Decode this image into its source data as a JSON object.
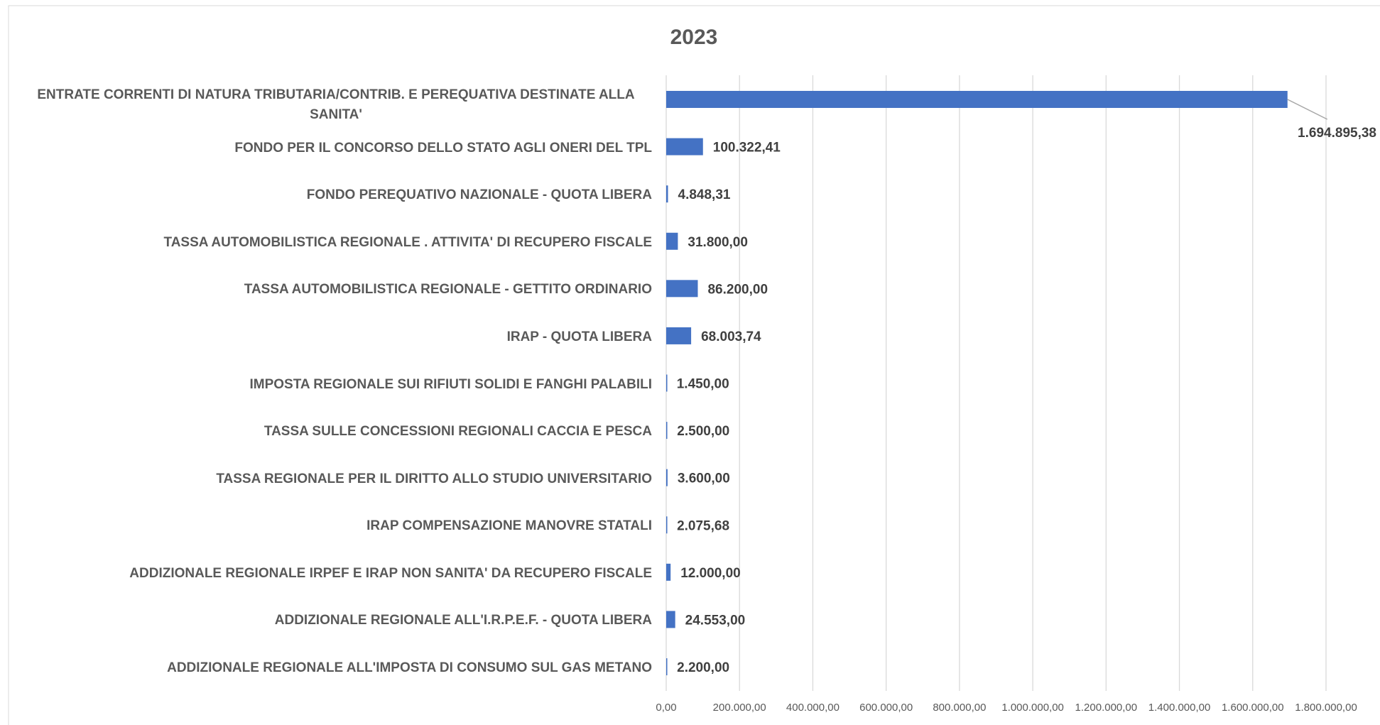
{
  "chart_data": {
    "type": "barh",
    "title": "2023",
    "categories": [
      "ENTRATE CORRENTI DI NATURA TRIBUTARIA/CONTRIB. E PEREQUATIVA DESTINATE ALLA SANITA'",
      "FONDO PER IL CONCORSO DELLO STATO AGLI ONERI DEL TPL",
      "FONDO PEREQUATIVO NAZIONALE - QUOTA LIBERA",
      "TASSA AUTOMOBILISTICA REGIONALE . ATTIVITA' DI RECUPERO FISCALE",
      "TASSA AUTOMOBILISTICA REGIONALE - GETTITO ORDINARIO",
      "IRAP - QUOTA LIBERA",
      "IMPOSTA REGIONALE SUI RIFIUTI SOLIDI E FANGHI PALABILI",
      "TASSA SULLE CONCESSIONI REGIONALI CACCIA E PESCA",
      "TASSA REGIONALE PER IL DIRITTO ALLO STUDIO UNIVERSITARIO",
      "IRAP COMPENSAZIONE MANOVRE STATALI",
      "ADDIZIONALE REGIONALE IRPEF E IRAP  NON SANITA' DA RECUPERO FISCALE",
      "ADDIZIONALE REGIONALE ALL'I.R.P.E.F. - QUOTA LIBERA",
      "ADDIZIONALE REGIONALE ALL'IMPOSTA DI CONSUMO SUL GAS METANO"
    ],
    "values": [
      1694895.38,
      100322.41,
      4848.31,
      31800,
      86200,
      68003.74,
      1450,
      2500,
      3600,
      2075.68,
      12000,
      24553,
      2200
    ],
    "value_labels": [
      "1.694.895,38",
      "100.322,41",
      "4.848,31",
      "31.800,00",
      "86.200,00",
      "68.003,74",
      "1.450,00",
      "2.500,00",
      "3.600,00",
      "2.075,68",
      "12.000,00",
      "24.553,00",
      "2.200,00"
    ],
    "color": "#4472c4",
    "xlim": [
      0,
      1800000
    ],
    "xticks": [
      {
        "value": 0,
        "label": "0,00"
      },
      {
        "value": 200000,
        "label": "200.000,00"
      },
      {
        "value": 400000,
        "label": "400.000,00"
      },
      {
        "value": 600000,
        "label": "600.000,00"
      },
      {
        "value": 800000,
        "label": "800.000,00"
      },
      {
        "value": 1000000,
        "label": "1.000.000,00"
      },
      {
        "value": 1200000,
        "label": "1.200.000,00"
      },
      {
        "value": 1400000,
        "label": "1.400.000,00"
      },
      {
        "value": 1600000,
        "label": "1.600.000,00"
      },
      {
        "value": 1800000,
        "label": "1.800.000,00"
      }
    ],
    "grid": true
  }
}
